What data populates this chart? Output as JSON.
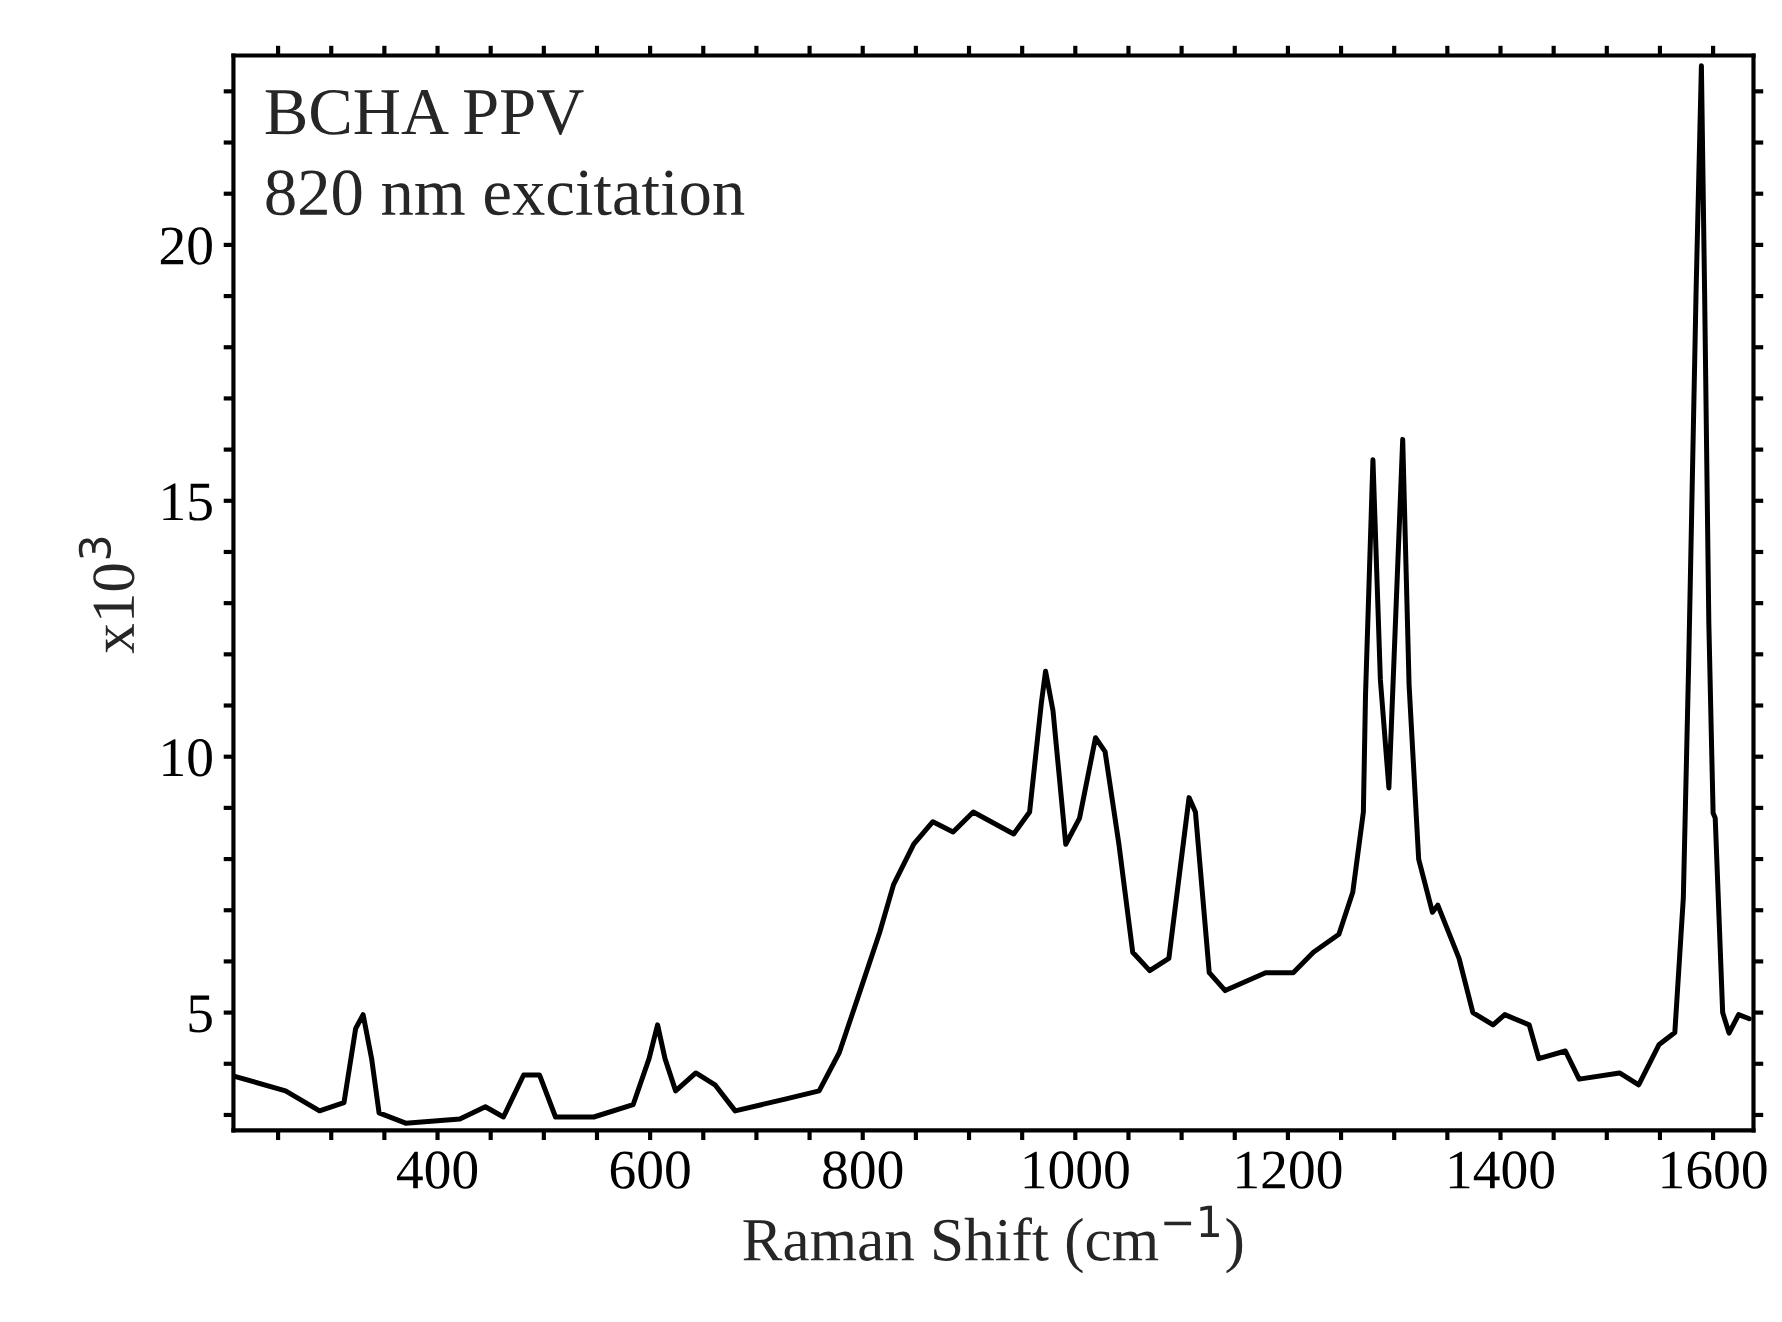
{
  "chart_data": {
    "type": "line",
    "xlabel": "Raman Shift (cm$^{−1}$)",
    "ylabel": "x10$^{3}$",
    "annotations": [
      "BCHA PPV",
      "820 nm excitation"
    ],
    "x": [
      210,
      257,
      289,
      312,
      323,
      330,
      338,
      345,
      370,
      421,
      445,
      462,
      481,
      496,
      511,
      547,
      584,
      599,
      607,
      614,
      624,
      643,
      661,
      680,
      727,
      759,
      778,
      797,
      816,
      829,
      848,
      866,
      885,
      904,
      942,
      957,
      968,
      972,
      979,
      991,
      1004,
      1019,
      1028,
      1041,
      1054,
      1070,
      1088,
      1107,
      1113,
      1126,
      1141,
      1179,
      1205,
      1224,
      1248,
      1261,
      1271,
      1273,
      1280,
      1287,
      1295,
      1300,
      1308,
      1314,
      1323,
      1336,
      1341,
      1361,
      1374,
      1393,
      1404,
      1427,
      1436,
      1461,
      1474,
      1512,
      1530,
      1549,
      1564,
      1572,
      1577,
      1584,
      1589,
      1592,
      1596,
      1600,
      1602,
      1609,
      1615,
      1624,
      1634
    ],
    "series": [
      {
        "color": "#000000",
        "values": [
          3.75,
          3.47,
          3.08,
          3.24,
          4.69,
          4.96,
          4.1,
          3.04,
          2.84,
          2.92,
          3.16,
          2.96,
          3.78,
          3.78,
          2.96,
          2.96,
          3.2,
          4.1,
          4.76,
          4.1,
          3.47,
          3.82,
          3.59,
          3.08,
          3.31,
          3.47,
          4.22,
          5.39,
          6.57,
          7.5,
          8.29,
          8.73,
          8.53,
          8.92,
          8.49,
          8.92,
          11.04,
          11.67,
          10.9,
          8.29,
          8.8,
          10.37,
          10.1,
          8.29,
          6.18,
          5.82,
          6.06,
          9.2,
          8.92,
          5.78,
          5.43,
          5.78,
          5.78,
          6.18,
          6.53,
          7.35,
          8.92,
          11.2,
          15.8,
          11.5,
          9.39,
          12.0,
          16.2,
          11.4,
          8.0,
          6.96,
          7.1,
          6.06,
          5.0,
          4.76,
          4.96,
          4.76,
          4.1,
          4.25,
          3.7,
          3.82,
          3.59,
          4.37,
          4.61,
          7.24,
          11.8,
          19.1,
          23.5,
          19.1,
          12.6,
          8.9,
          8.8,
          5.0,
          4.6,
          4.96,
          4.88
        ]
      }
    ],
    "xlim": [
      208,
      1638
    ],
    "ylim": [
      2.7,
      23.7
    ],
    "xticks": [
      {
        "value": 250,
        "label": null
      },
      {
        "value": 300,
        "label": null
      },
      {
        "value": 350,
        "label": null
      },
      400,
      {
        "value": 450,
        "label": null
      },
      {
        "value": 500,
        "label": null
      },
      {
        "value": 550,
        "label": null
      },
      600,
      {
        "value": 650,
        "label": null
      },
      {
        "value": 700,
        "label": null
      },
      {
        "value": 750,
        "label": null
      },
      800,
      {
        "value": 850,
        "label": null
      },
      {
        "value": 900,
        "label": null
      },
      {
        "value": 950,
        "label": null
      },
      1000,
      {
        "value": 1050,
        "label": null
      },
      {
        "value": 1100,
        "label": null
      },
      {
        "value": 1150,
        "label": null
      },
      1200,
      {
        "value": 1250,
        "label": null
      },
      {
        "value": 1300,
        "label": null
      },
      {
        "value": 1350,
        "label": null
      },
      1400,
      {
        "value": 1450,
        "label": null
      },
      {
        "value": 1500,
        "label": null
      },
      {
        "value": 1550,
        "label": null
      },
      1600
    ],
    "yticks": [
      {
        "value": 3,
        "label": null
      },
      {
        "value": 4,
        "label": null
      },
      5,
      {
        "value": 6,
        "label": null
      },
      {
        "value": 7,
        "label": null
      },
      {
        "value": 8,
        "label": null
      },
      {
        "value": 9,
        "label": null
      },
      10,
      {
        "value": 11,
        "label": null
      },
      {
        "value": 12,
        "label": null
      },
      {
        "value": 13,
        "label": null
      },
      {
        "value": 14,
        "label": null
      },
      15,
      {
        "value": 16,
        "label": null
      },
      {
        "value": 17,
        "label": null
      },
      {
        "value": 18,
        "label": null
      },
      {
        "value": 19,
        "label": null
      },
      20,
      {
        "value": 21,
        "label": null
      },
      {
        "value": 22,
        "label": null
      },
      {
        "value": 23,
        "label": null
      }
    ],
    "grid": false,
    "legend": false,
    "marker": "none",
    "line_style": "solid"
  }
}
